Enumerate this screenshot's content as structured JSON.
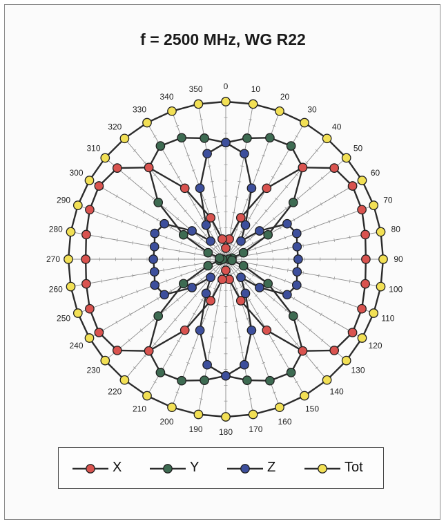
{
  "chart_data": {
    "type": "polar-line",
    "title": "f = 2500 MHz, WG R22",
    "angle_unit": "degrees",
    "angles": [
      0,
      10,
      20,
      30,
      40,
      50,
      60,
      70,
      80,
      90,
      100,
      110,
      120,
      130,
      140,
      150,
      160,
      170,
      180,
      190,
      200,
      210,
      220,
      230,
      240,
      250,
      260,
      270,
      280,
      290,
      300,
      310,
      320,
      330,
      340,
      350
    ],
    "angle_labels": [
      "0",
      "10",
      "20",
      "30",
      "40",
      "50",
      "60",
      "70",
      "80",
      "90",
      "100",
      "110",
      "120",
      "130",
      "140",
      "150",
      "160",
      "170",
      "180",
      "190",
      "200",
      "210",
      "220",
      "230",
      "240",
      "250",
      "260",
      "270",
      "280",
      "290",
      "300",
      "310",
      "320",
      "330",
      "340",
      "350"
    ],
    "grid": true,
    "legend_position": "bottom",
    "series": [
      {
        "name": "X",
        "color": "#d9534f",
        "values": [
          0.07,
          0.13,
          0.28,
          0.52,
          0.76,
          0.9,
          0.93,
          0.92,
          0.9,
          0.89,
          0.9,
          0.92,
          0.93,
          0.9,
          0.76,
          0.52,
          0.28,
          0.13,
          0.07,
          0.13,
          0.28,
          0.52,
          0.76,
          0.9,
          0.93,
          0.92,
          0.9,
          0.89,
          0.9,
          0.92,
          0.93,
          0.9,
          0.76,
          0.52,
          0.28,
          0.13
        ]
      },
      {
        "name": "Y",
        "color": "#3e6b52",
        "values": [
          0.74,
          0.78,
          0.82,
          0.83,
          0.76,
          0.56,
          0.31,
          0.12,
          0.04,
          0.02,
          0.04,
          0.12,
          0.31,
          0.56,
          0.76,
          0.83,
          0.82,
          0.78,
          0.74,
          0.78,
          0.82,
          0.83,
          0.76,
          0.56,
          0.31,
          0.12,
          0.04,
          0.02,
          0.04,
          0.12,
          0.31,
          0.56,
          0.76,
          0.83,
          0.82,
          0.78
        ]
      },
      {
        "name": "Z",
        "color": "#3d4f9c",
        "values": [
          0.74,
          0.68,
          0.48,
          0.25,
          0.15,
          0.28,
          0.45,
          0.48,
          0.46,
          0.46,
          0.46,
          0.48,
          0.45,
          0.28,
          0.15,
          0.25,
          0.48,
          0.68,
          0.74,
          0.68,
          0.48,
          0.25,
          0.15,
          0.28,
          0.45,
          0.48,
          0.46,
          0.46,
          0.46,
          0.48,
          0.45,
          0.28,
          0.15,
          0.25,
          0.48,
          0.68
        ]
      },
      {
        "name": "Tot",
        "color": "#f2e055",
        "values": [
          1,
          1,
          1,
          1,
          1,
          1,
          1,
          1,
          1,
          1,
          1,
          1,
          1,
          1,
          1,
          1,
          1,
          1,
          1,
          1,
          1,
          1,
          1,
          1,
          1,
          1,
          1,
          1,
          1,
          1,
          1,
          1,
          1,
          1,
          1,
          1
        ]
      }
    ]
  }
}
